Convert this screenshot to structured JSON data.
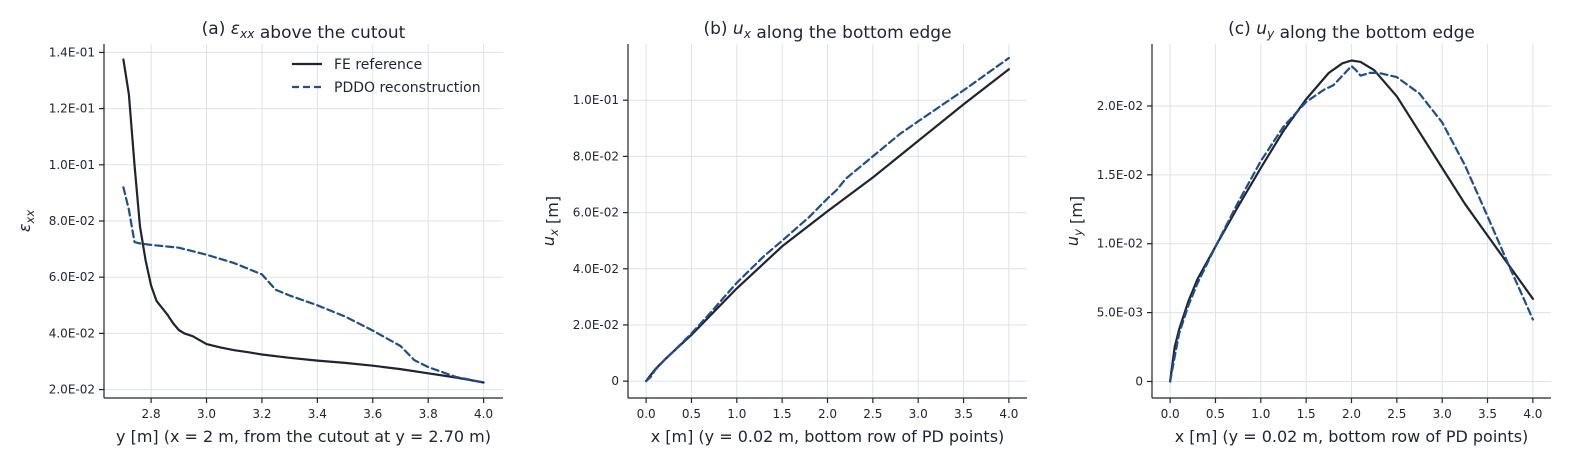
{
  "chart_data": [
    {
      "type": "line",
      "title": "(a) ε_xx above the cutout",
      "xlabel": "y [m]  (x = 2 m, from the cutout at y = 2.70 m)",
      "ylabel": "ε_xx",
      "xlim": [
        2.63,
        4.07
      ],
      "ylim": [
        0.017,
        0.143
      ],
      "xticks": [
        2.8,
        3.0,
        3.2,
        3.4,
        3.6,
        3.8,
        4.0
      ],
      "xtick_labels": [
        "2.8",
        "3.0",
        "3.2",
        "3.4",
        "3.6",
        "3.8",
        "4.0"
      ],
      "yticks": [
        0.02,
        0.04,
        0.06,
        0.08,
        0.1,
        0.12,
        0.14
      ],
      "ytick_labels": [
        "2.0E-02",
        "4.0E-02",
        "6.0E-02",
        "8.0E-02",
        "1.0E-01",
        "1.2E-01",
        "1.4E-01"
      ],
      "grid": true,
      "legend": "top-right",
      "series": [
        {
          "name": "FE reference",
          "style": "solid",
          "color": "#1f2430",
          "x": [
            2.7,
            2.72,
            2.74,
            2.76,
            2.78,
            2.8,
            2.82,
            2.84,
            2.86,
            2.88,
            2.9,
            2.92,
            2.95,
            3.0,
            3.05,
            3.1,
            3.15,
            3.2,
            3.3,
            3.4,
            3.5,
            3.6,
            3.7,
            3.8,
            3.9,
            4.0
          ],
          "y": [
            0.1375,
            0.125,
            0.1,
            0.078,
            0.066,
            0.057,
            0.0515,
            0.049,
            0.0465,
            0.0435,
            0.0412,
            0.04,
            0.039,
            0.0362,
            0.035,
            0.034,
            0.0333,
            0.0325,
            0.0313,
            0.0303,
            0.0295,
            0.0285,
            0.0273,
            0.0258,
            0.0243,
            0.0225
          ]
        },
        {
          "name": "PDDO reconstruction",
          "style": "dashed",
          "color": "#1f4e8c",
          "x": [
            2.7,
            2.72,
            2.74,
            2.76,
            2.8,
            2.9,
            3.0,
            3.1,
            3.2,
            3.25,
            3.3,
            3.4,
            3.5,
            3.6,
            3.7,
            3.75,
            3.8,
            3.9,
            4.0
          ],
          "y": [
            0.092,
            0.084,
            0.0725,
            0.072,
            0.0715,
            0.0705,
            0.068,
            0.065,
            0.061,
            0.0555,
            0.0535,
            0.05,
            0.046,
            0.041,
            0.0355,
            0.0305,
            0.028,
            0.0245,
            0.0225
          ]
        }
      ]
    },
    {
      "type": "line",
      "title": "(b) u_x along the bottom edge",
      "xlabel": "x [m]  (y = 0.02 m, bottom row of PD points)",
      "ylabel": "u_x [m]",
      "xlim": [
        -0.2,
        4.2
      ],
      "ylim": [
        -0.006,
        0.12
      ],
      "xticks": [
        0.0,
        0.5,
        1.0,
        1.5,
        2.0,
        2.5,
        3.0,
        3.5,
        4.0
      ],
      "xtick_labels": [
        "0.0",
        "0.5",
        "1.0",
        "1.5",
        "2.0",
        "2.5",
        "3.0",
        "3.5",
        "4.0"
      ],
      "yticks": [
        0.0,
        0.02,
        0.04,
        0.06,
        0.08,
        0.1
      ],
      "ytick_labels": [
        "0",
        "2.0E-02",
        "4.0E-02",
        "6.0E-02",
        "8.0E-02",
        "1.0E-01"
      ],
      "grid": true,
      "series": [
        {
          "name": "FE reference",
          "style": "solid",
          "color": "#1f2430",
          "x": [
            0.0,
            0.1,
            0.2,
            0.3,
            0.5,
            1.0,
            1.5,
            2.0,
            2.5,
            3.0,
            3.5,
            4.0
          ],
          "y": [
            0.0,
            0.0042,
            0.0075,
            0.0105,
            0.0165,
            0.033,
            0.048,
            0.0605,
            0.0725,
            0.0855,
            0.0985,
            0.111
          ]
        },
        {
          "name": "PDDO reconstruction",
          "style": "dashed",
          "color": "#1f4e8c",
          "x": [
            0.0,
            0.05,
            0.1,
            0.2,
            0.3,
            0.5,
            0.7,
            1.0,
            1.3,
            1.5,
            1.8,
            2.0,
            2.1,
            2.2,
            2.5,
            2.8,
            3.0,
            3.5,
            4.0
          ],
          "y": [
            0.0,
            0.0015,
            0.004,
            0.0075,
            0.0105,
            0.017,
            0.024,
            0.035,
            0.0445,
            0.05,
            0.0585,
            0.065,
            0.068,
            0.072,
            0.08,
            0.088,
            0.0925,
            0.1035,
            0.115
          ]
        }
      ]
    },
    {
      "type": "line",
      "title": "(c) u_y along the bottom edge",
      "xlabel": "x [m]  (y = 0.02 m, bottom row of PD points)",
      "ylabel": "u_y [m]",
      "xlim": [
        -0.2,
        4.2
      ],
      "ylim": [
        -0.0012,
        0.0245
      ],
      "xticks": [
        0.0,
        0.5,
        1.0,
        1.5,
        2.0,
        2.5,
        3.0,
        3.5,
        4.0
      ],
      "xtick_labels": [
        "0.0",
        "0.5",
        "1.0",
        "1.5",
        "2.0",
        "2.5",
        "3.0",
        "3.5",
        "4.0"
      ],
      "yticks": [
        0.0,
        0.005,
        0.01,
        0.015,
        0.02
      ],
      "ytick_labels": [
        "0",
        "5.0E-03",
        "1.0E-02",
        "1.5E-02",
        "2.0E-02"
      ],
      "grid": true,
      "series": [
        {
          "name": "FE reference",
          "style": "solid",
          "color": "#1f2430",
          "x": [
            0.0,
            0.05,
            0.1,
            0.2,
            0.3,
            0.5,
            0.75,
            1.0,
            1.25,
            1.5,
            1.75,
            1.9,
            2.0,
            2.1,
            2.25,
            2.5,
            2.75,
            3.0,
            3.25,
            3.5,
            3.75,
            4.0
          ],
          "y": [
            0.0,
            0.0025,
            0.0038,
            0.0058,
            0.0074,
            0.0098,
            0.0127,
            0.0155,
            0.0182,
            0.0205,
            0.0224,
            0.0231,
            0.0233,
            0.0232,
            0.0226,
            0.0207,
            0.0181,
            0.0155,
            0.0129,
            0.0106,
            0.0083,
            0.006
          ]
        },
        {
          "name": "PDDO reconstruction",
          "style": "dashed",
          "color": "#1f4e8c",
          "x": [
            0.0,
            0.05,
            0.1,
            0.2,
            0.3,
            0.5,
            0.75,
            1.0,
            1.25,
            1.5,
            1.7,
            1.8,
            1.9,
            2.0,
            2.05,
            2.1,
            2.2,
            2.3,
            2.5,
            2.75,
            3.0,
            3.25,
            3.5,
            3.75,
            3.9,
            4.0
          ],
          "y": [
            0.0,
            0.0018,
            0.0035,
            0.0055,
            0.0071,
            0.0098,
            0.013,
            0.016,
            0.0185,
            0.0203,
            0.0212,
            0.0215,
            0.0222,
            0.0229,
            0.0226,
            0.0222,
            0.0224,
            0.0224,
            0.0221,
            0.0209,
            0.0188,
            0.0157,
            0.012,
            0.0082,
            0.006,
            0.0045
          ]
        }
      ]
    }
  ]
}
